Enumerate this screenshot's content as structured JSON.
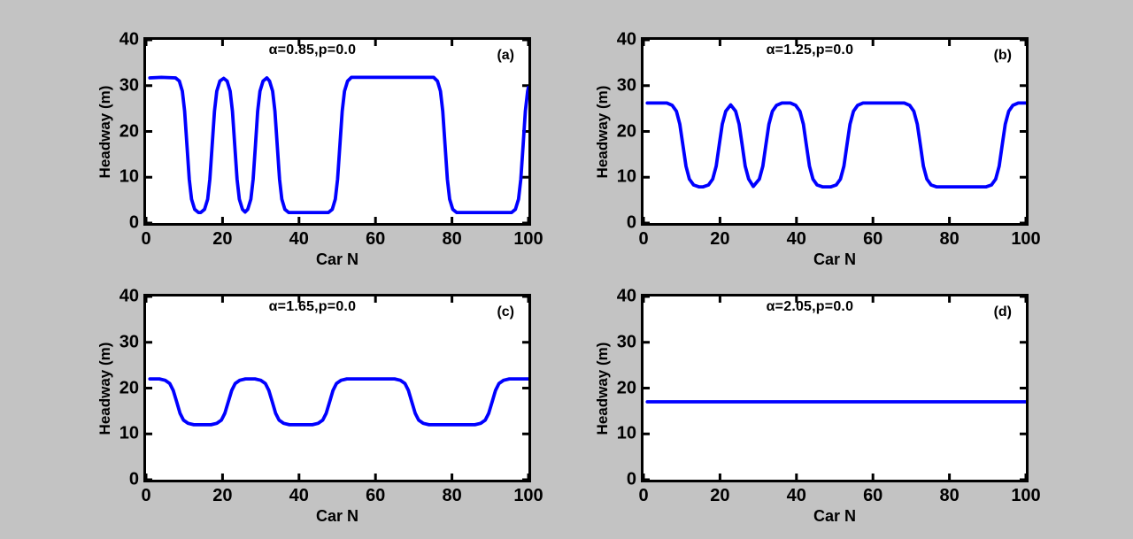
{
  "figure": {
    "background_color": "#c3c3c3",
    "plot_background_color": "#ffffff",
    "axis_color": "#000000",
    "line_color": "#0000ff"
  },
  "chart_data": [
    {
      "type": "line",
      "corner_label": "(a)",
      "title": "α=0.85,p=0.0",
      "xlabel": "Car N",
      "ylabel": "Headway (m)",
      "xlim": [
        0,
        100
      ],
      "ylim": [
        0,
        40
      ],
      "xticks": [
        0,
        20,
        40,
        60,
        80,
        100
      ],
      "yticks": [
        0,
        10,
        20,
        30,
        40
      ],
      "grid": false,
      "legend": "none",
      "points": [
        [
          1,
          31.7
        ],
        [
          4,
          31.8
        ],
        [
          7.7,
          31.7
        ],
        [
          8.7,
          31.0
        ],
        [
          9.5,
          28.8
        ],
        [
          10.1,
          24.4
        ],
        [
          10.7,
          17.0
        ],
        [
          11.3,
          9.6
        ],
        [
          11.9,
          5.2
        ],
        [
          12.7,
          3.0
        ],
        [
          13.7,
          2.3
        ],
        [
          14.3,
          2.3
        ],
        [
          15.3,
          3.0
        ],
        [
          16.1,
          5.2
        ],
        [
          16.7,
          9.6
        ],
        [
          17.3,
          17.0
        ],
        [
          17.9,
          24.4
        ],
        [
          18.5,
          28.8
        ],
        [
          19.3,
          31.0
        ],
        [
          20.3,
          31.6
        ],
        [
          21.2,
          31.0
        ],
        [
          22.0,
          28.8
        ],
        [
          22.6,
          24.4
        ],
        [
          23.2,
          17.0
        ],
        [
          23.8,
          9.6
        ],
        [
          24.4,
          5.2
        ],
        [
          25.2,
          3.0
        ],
        [
          25.9,
          2.4
        ],
        [
          26.6,
          3.0
        ],
        [
          27.4,
          5.2
        ],
        [
          28.0,
          9.6
        ],
        [
          28.6,
          17.0
        ],
        [
          29.2,
          24.4
        ],
        [
          29.8,
          28.8
        ],
        [
          30.6,
          31.0
        ],
        [
          31.6,
          31.7
        ],
        [
          32.3,
          31.0
        ],
        [
          33.1,
          28.8
        ],
        [
          33.7,
          24.4
        ],
        [
          34.3,
          17.0
        ],
        [
          34.9,
          9.6
        ],
        [
          35.5,
          5.2
        ],
        [
          36.3,
          3.0
        ],
        [
          37.3,
          2.3
        ],
        [
          47.7,
          2.3
        ],
        [
          48.7,
          3.0
        ],
        [
          49.5,
          5.2
        ],
        [
          50.1,
          9.6
        ],
        [
          50.7,
          17.0
        ],
        [
          51.3,
          24.4
        ],
        [
          51.9,
          28.8
        ],
        [
          52.7,
          31.0
        ],
        [
          53.7,
          31.8
        ],
        [
          75.2,
          31.8
        ],
        [
          76.2,
          31.0
        ],
        [
          77.0,
          28.8
        ],
        [
          77.6,
          24.4
        ],
        [
          78.2,
          17.0
        ],
        [
          78.8,
          9.6
        ],
        [
          79.4,
          5.2
        ],
        [
          80.2,
          3.0
        ],
        [
          81.2,
          2.3
        ],
        [
          95.6,
          2.3
        ],
        [
          96.6,
          3.0
        ],
        [
          97.4,
          5.2
        ],
        [
          98.0,
          9.6
        ],
        [
          98.6,
          17.0
        ],
        [
          99.2,
          24.4
        ],
        [
          99.8,
          28.8
        ],
        [
          100,
          29.6
        ]
      ]
    },
    {
      "type": "line",
      "corner_label": "(b)",
      "title": "α=1.25,p=0.0",
      "xlabel": "Car N",
      "ylabel": "Headway (m)",
      "xlim": [
        0,
        100
      ],
      "ylim": [
        0,
        40
      ],
      "xticks": [
        0,
        20,
        40,
        60,
        80,
        100
      ],
      "yticks": [
        0,
        10,
        20,
        30,
        40
      ],
      "grid": false,
      "legend": "none",
      "points": [
        [
          1,
          26.2
        ],
        [
          6.1,
          26.2
        ],
        [
          7.5,
          25.7
        ],
        [
          8.6,
          24.4
        ],
        [
          9.5,
          21.6
        ],
        [
          10.3,
          17.0
        ],
        [
          11.1,
          12.4
        ],
        [
          12.0,
          9.6
        ],
        [
          13.1,
          8.3
        ],
        [
          14.5,
          7.9
        ],
        [
          15.6,
          7.9
        ],
        [
          17.0,
          8.3
        ],
        [
          18.1,
          9.6
        ],
        [
          19.0,
          12.4
        ],
        [
          19.8,
          17.0
        ],
        [
          20.6,
          21.6
        ],
        [
          21.5,
          24.4
        ],
        [
          22.8,
          25.8
        ],
        [
          24.1,
          24.4
        ],
        [
          25.0,
          21.6
        ],
        [
          25.8,
          17.0
        ],
        [
          26.6,
          12.4
        ],
        [
          27.5,
          9.6
        ],
        [
          28.7,
          8.0
        ],
        [
          30.3,
          9.6
        ],
        [
          31.2,
          12.4
        ],
        [
          32.0,
          17.0
        ],
        [
          32.8,
          21.6
        ],
        [
          33.7,
          24.4
        ],
        [
          34.8,
          25.7
        ],
        [
          36.2,
          26.2
        ],
        [
          38.4,
          26.2
        ],
        [
          39.8,
          25.7
        ],
        [
          40.9,
          24.4
        ],
        [
          41.8,
          21.6
        ],
        [
          42.6,
          17.0
        ],
        [
          43.4,
          12.4
        ],
        [
          44.3,
          9.6
        ],
        [
          45.4,
          8.3
        ],
        [
          46.8,
          7.9
        ],
        [
          49.0,
          7.9
        ],
        [
          50.4,
          8.3
        ],
        [
          51.5,
          9.6
        ],
        [
          52.4,
          12.4
        ],
        [
          53.2,
          17.0
        ],
        [
          54.0,
          21.6
        ],
        [
          54.9,
          24.4
        ],
        [
          56.0,
          25.7
        ],
        [
          57.4,
          26.2
        ],
        [
          68.2,
          26.2
        ],
        [
          69.6,
          25.7
        ],
        [
          70.7,
          24.4
        ],
        [
          71.6,
          21.6
        ],
        [
          72.4,
          17.0
        ],
        [
          73.2,
          12.4
        ],
        [
          74.1,
          9.6
        ],
        [
          75.2,
          8.3
        ],
        [
          76.6,
          7.9
        ],
        [
          89.6,
          7.9
        ],
        [
          91.0,
          8.3
        ],
        [
          92.1,
          9.6
        ],
        [
          93.0,
          12.4
        ],
        [
          93.8,
          17.0
        ],
        [
          94.6,
          21.6
        ],
        [
          95.5,
          24.4
        ],
        [
          96.6,
          25.7
        ],
        [
          98.0,
          26.2
        ],
        [
          100,
          26.2
        ]
      ]
    },
    {
      "type": "line",
      "corner_label": "(c)",
      "title": "α=1.65,p=0.0",
      "xlabel": "Car N",
      "ylabel": "Headway (m)",
      "xlim": [
        0,
        100
      ],
      "ylim": [
        0,
        40
      ],
      "xticks": [
        0,
        20,
        40,
        60,
        80,
        100
      ],
      "yticks": [
        0,
        10,
        20,
        30,
        40
      ],
      "grid": false,
      "legend": "none",
      "points": [
        [
          1,
          22.0
        ],
        [
          3.5,
          22.0
        ],
        [
          5.0,
          21.7
        ],
        [
          6.2,
          21.0
        ],
        [
          7.1,
          19.5
        ],
        [
          8.0,
          17.0
        ],
        [
          8.9,
          14.5
        ],
        [
          9.8,
          13.0
        ],
        [
          11.0,
          12.3
        ],
        [
          12.5,
          12.0
        ],
        [
          17.0,
          12.0
        ],
        [
          18.5,
          12.3
        ],
        [
          19.7,
          13.0
        ],
        [
          20.6,
          14.5
        ],
        [
          21.5,
          17.0
        ],
        [
          22.4,
          19.5
        ],
        [
          23.3,
          21.0
        ],
        [
          24.5,
          21.7
        ],
        [
          26.0,
          22.0
        ],
        [
          28.5,
          22.0
        ],
        [
          30.0,
          21.7
        ],
        [
          31.2,
          21.0
        ],
        [
          32.1,
          19.5
        ],
        [
          33.0,
          17.0
        ],
        [
          33.9,
          14.5
        ],
        [
          34.8,
          13.0
        ],
        [
          36.0,
          12.3
        ],
        [
          37.5,
          12.0
        ],
        [
          43.5,
          12.0
        ],
        [
          45.0,
          12.3
        ],
        [
          46.2,
          13.0
        ],
        [
          47.1,
          14.5
        ],
        [
          48.0,
          17.0
        ],
        [
          48.9,
          19.5
        ],
        [
          49.8,
          21.0
        ],
        [
          51.0,
          21.7
        ],
        [
          52.5,
          22.0
        ],
        [
          65.0,
          22.0
        ],
        [
          66.5,
          21.7
        ],
        [
          67.7,
          21.0
        ],
        [
          68.6,
          19.5
        ],
        [
          69.5,
          17.0
        ],
        [
          70.4,
          14.5
        ],
        [
          71.3,
          13.0
        ],
        [
          72.5,
          12.3
        ],
        [
          74.0,
          12.0
        ],
        [
          86.0,
          12.0
        ],
        [
          87.5,
          12.3
        ],
        [
          88.7,
          13.0
        ],
        [
          89.6,
          14.5
        ],
        [
          90.5,
          17.0
        ],
        [
          91.4,
          19.5
        ],
        [
          92.3,
          21.0
        ],
        [
          93.5,
          21.7
        ],
        [
          95.0,
          22.0
        ],
        [
          100,
          22.0
        ]
      ]
    },
    {
      "type": "line",
      "corner_label": "(d)",
      "title": "α=2.05,p=0.0",
      "xlabel": "Car N",
      "ylabel": "Headway (m)",
      "xlim": [
        0,
        100
      ],
      "ylim": [
        0,
        40
      ],
      "xticks": [
        0,
        20,
        40,
        60,
        80,
        100
      ],
      "yticks": [
        0,
        10,
        20,
        30,
        40
      ],
      "grid": false,
      "legend": "none",
      "points": [
        [
          1,
          17.0
        ],
        [
          100,
          17.0
        ]
      ]
    }
  ]
}
